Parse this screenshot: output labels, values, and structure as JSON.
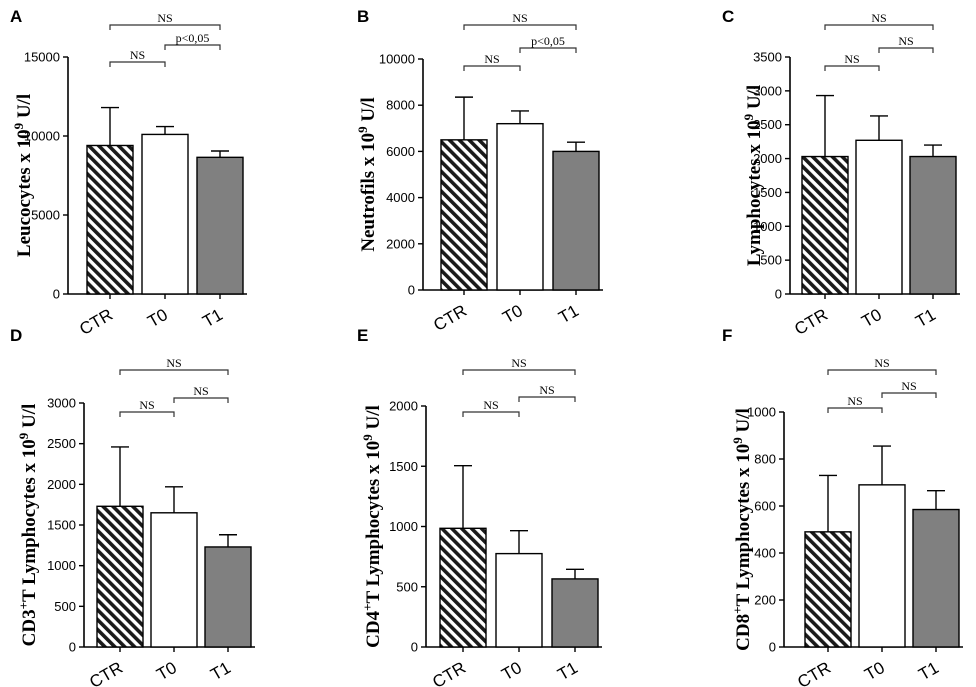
{
  "chart_data": [
    {
      "panel": "A",
      "type": "bar",
      "ylabel": "Leucocytes x 10^9 U/l",
      "categories": [
        "CTR",
        "T0",
        "T1"
      ],
      "values": [
        9400,
        10100,
        8650
      ],
      "errors": [
        2400,
        500,
        400
      ],
      "ylim": [
        0,
        15000
      ],
      "yticks": [
        "0",
        "5000",
        "10000",
        "15000"
      ],
      "comparisons": [
        {
          "from": 0,
          "to": 1,
          "label": "NS"
        },
        {
          "from": 1,
          "to": 2,
          "label": "p<0,05"
        },
        {
          "from": 0,
          "to": 2,
          "label": "NS"
        }
      ]
    },
    {
      "panel": "B",
      "type": "bar",
      "ylabel": "Neutrofils x 10^9 U/l",
      "categories": [
        "CTR",
        "T0",
        "T1"
      ],
      "values": [
        6500,
        7200,
        6000
      ],
      "errors": [
        1850,
        550,
        400
      ],
      "ylim": [
        0,
        10000
      ],
      "yticks": [
        "0",
        "2000",
        "4000",
        "6000",
        "8000",
        "10000"
      ],
      "comparisons": [
        {
          "from": 0,
          "to": 1,
          "label": "NS"
        },
        {
          "from": 1,
          "to": 2,
          "label": "p<0,05"
        },
        {
          "from": 0,
          "to": 2,
          "label": "NS"
        }
      ]
    },
    {
      "panel": "C",
      "type": "bar",
      "ylabel": "Lymphocytes x 10^9 U/l",
      "categories": [
        "CTR",
        "T0",
        "T1"
      ],
      "values": [
        2030,
        2270,
        2030
      ],
      "errors": [
        900,
        360,
        170
      ],
      "ylim": [
        0,
        3500
      ],
      "yticks": [
        "0",
        "500",
        "1000",
        "1500",
        "2000",
        "2500",
        "3000",
        "3500"
      ],
      "comparisons": [
        {
          "from": 0,
          "to": 1,
          "label": "NS"
        },
        {
          "from": 1,
          "to": 2,
          "label": "NS"
        },
        {
          "from": 0,
          "to": 2,
          "label": "NS"
        }
      ]
    },
    {
      "panel": "D",
      "type": "bar",
      "ylabel": "CD3+ T Lymphocytes x 10^9 U/l",
      "categories": [
        "CTR",
        "T0",
        "T1"
      ],
      "values": [
        1730,
        1650,
        1230
      ],
      "errors": [
        730,
        320,
        150
      ],
      "ylim": [
        0,
        3000
      ],
      "yticks": [
        "0",
        "500",
        "1000",
        "1500",
        "2000",
        "2500",
        "3000"
      ],
      "comparisons": [
        {
          "from": 0,
          "to": 1,
          "label": "NS"
        },
        {
          "from": 1,
          "to": 2,
          "label": "NS"
        },
        {
          "from": 0,
          "to": 2,
          "label": "NS"
        }
      ]
    },
    {
      "panel": "E",
      "type": "bar",
      "ylabel": "CD4+ T Lymphocytes x 10^9 U/l",
      "categories": [
        "CTR",
        "T0",
        "T1"
      ],
      "values": [
        985,
        775,
        565
      ],
      "errors": [
        520,
        190,
        80
      ],
      "ylim": [
        0,
        2000
      ],
      "yticks": [
        "0",
        "500",
        "1000",
        "1500",
        "2000"
      ],
      "comparisons": [
        {
          "from": 0,
          "to": 1,
          "label": "NS"
        },
        {
          "from": 1,
          "to": 2,
          "label": "NS"
        },
        {
          "from": 0,
          "to": 2,
          "label": "NS"
        }
      ]
    },
    {
      "panel": "F",
      "type": "bar",
      "ylabel": "CD8+ T Lymphocytes x 10^9 U/l",
      "categories": [
        "CTR",
        "T0",
        "T1"
      ],
      "values": [
        490,
        690,
        585
      ],
      "errors": [
        240,
        165,
        80
      ],
      "ylim": [
        0,
        1000
      ],
      "yticks": [
        "0",
        "200",
        "400",
        "600",
        "800",
        "1000"
      ],
      "comparisons": [
        {
          "from": 0,
          "to": 1,
          "label": "NS"
        },
        {
          "from": 1,
          "to": 2,
          "label": "NS"
        },
        {
          "from": 0,
          "to": 2,
          "label": "NS"
        }
      ]
    }
  ],
  "ylabel_parts": {
    "A": {
      "pre": "Leucocytes x 10",
      "sup": "9",
      "post": " U/l"
    },
    "B": {
      "pre": "Neutrofils x 10",
      "sup": "9",
      "post": " U/l"
    },
    "C": {
      "pre": "Lymphocytes x 10",
      "sup": "9",
      "post": " U/l"
    },
    "D": {
      "pre": "CD3",
      "sup1": "+",
      "mid": "T Lymphocytes x 10",
      "sup": "9",
      "post": " U/l"
    },
    "E": {
      "pre": "CD4",
      "sup1": "+",
      "mid": "T Lymphocytes x 10",
      "sup": "9",
      "post": " U/l"
    },
    "F": {
      "pre": "CD8",
      "sup1": "+",
      "mid": "T Lymphocytes x 10",
      "sup": "9",
      "post": " U/l"
    }
  },
  "colors": {
    "ctr_fill": "#1a1a1a",
    "t0_fill": "#ffffff",
    "t1_fill": "#808080",
    "stroke": "#000000"
  }
}
